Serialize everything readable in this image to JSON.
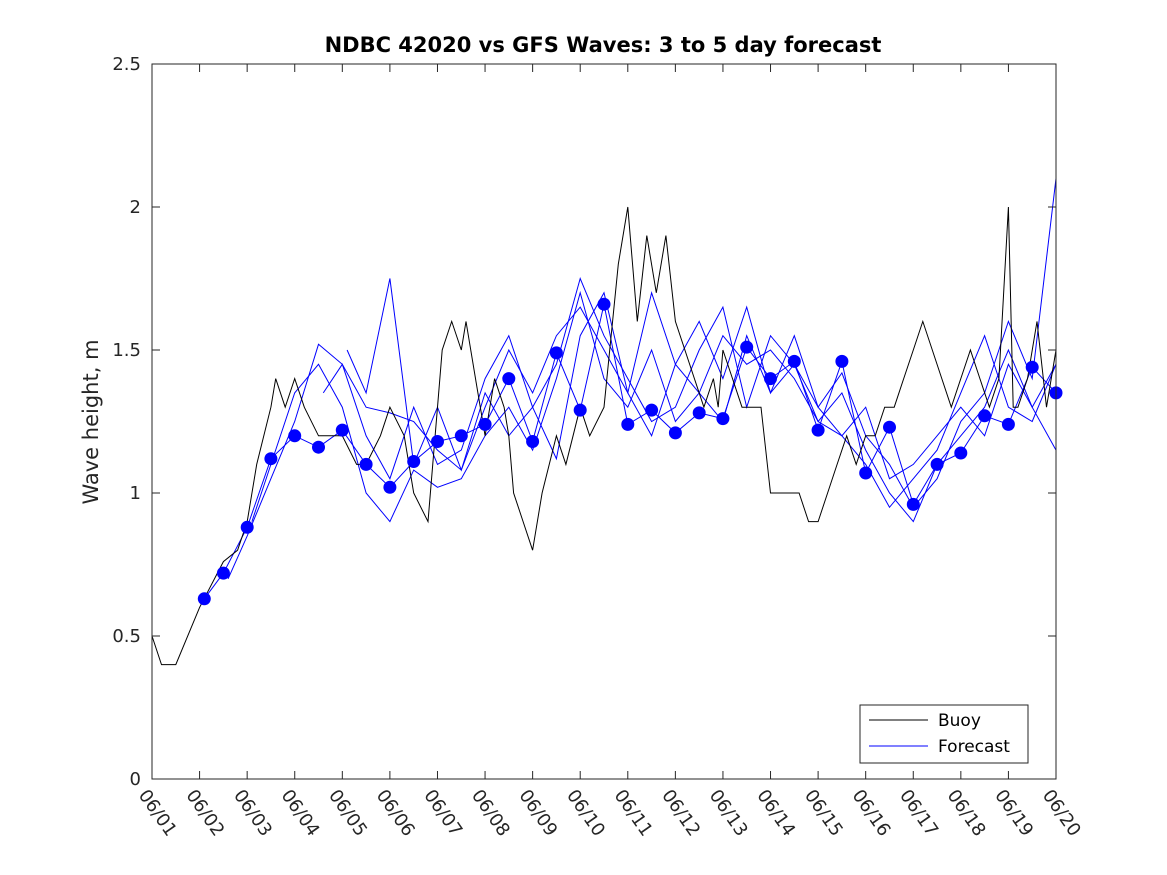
{
  "chart_data": {
    "type": "line",
    "title": "NDBC 42020 vs GFS Waves: 3 to 5 day forecast",
    "xlabel": "",
    "ylabel": "Wave height, m",
    "ylim": [
      0,
      2.5
    ],
    "yticks": [
      0,
      0.5,
      1,
      1.5,
      2,
      2.5
    ],
    "ytick_labels": [
      "0",
      "0.5",
      "1",
      "1.5",
      "2",
      "2.5"
    ],
    "xlim": [
      0,
      19
    ],
    "xtick_labels": [
      "06/01",
      "06/02",
      "06/03",
      "06/04",
      "06/05",
      "06/06",
      "06/07",
      "06/08",
      "06/09",
      "06/10",
      "06/11",
      "06/12",
      "06/13",
      "06/14",
      "06/15",
      "06/16",
      "06/17",
      "06/18",
      "06/19",
      "06/20"
    ],
    "grid": false,
    "legend": {
      "placement": "bottom-right",
      "entries": [
        "Buoy",
        "Forecast"
      ]
    },
    "colors": {
      "buoy": "#000000",
      "forecast": "#0000ff"
    },
    "buoy": {
      "name": "Buoy",
      "x": [
        0.0,
        0.2,
        0.5,
        1.0,
        1.5,
        1.8,
        2.0,
        2.2,
        2.5,
        2.6,
        2.8,
        3.0,
        3.2,
        3.5,
        3.6,
        3.8,
        4.0,
        4.3,
        4.5,
        4.8,
        5.0,
        5.3,
        5.5,
        5.8,
        6.0,
        6.1,
        6.3,
        6.5,
        6.6,
        6.8,
        6.9,
        7.0,
        7.2,
        7.4,
        7.5,
        7.6,
        7.8,
        8.0,
        8.2,
        8.5,
        8.7,
        9.0,
        9.2,
        9.5,
        9.8,
        10.0,
        10.2,
        10.4,
        10.6,
        10.8,
        11.0,
        11.2,
        11.4,
        11.6,
        11.8,
        11.9,
        12.0,
        12.2,
        12.4,
        12.6,
        12.8,
        13.0,
        13.2,
        13.4,
        13.6,
        13.8,
        14.0,
        14.2,
        14.4,
        14.6,
        14.8,
        15.0,
        15.2,
        15.4,
        15.6,
        15.8,
        16.0,
        16.2,
        16.4,
        16.6,
        16.8,
        17.0,
        17.2,
        17.4,
        17.6,
        17.8,
        18.0,
        18.1,
        18.2,
        18.4,
        18.6,
        18.8,
        19.0
      ],
      "values": [
        0.5,
        0.4,
        0.4,
        0.6,
        0.76,
        0.8,
        0.9,
        1.1,
        1.3,
        1.4,
        1.3,
        1.4,
        1.3,
        1.2,
        1.2,
        1.2,
        1.2,
        1.1,
        1.1,
        1.2,
        1.3,
        1.2,
        1.0,
        0.9,
        1.3,
        1.5,
        1.6,
        1.5,
        1.6,
        1.4,
        1.3,
        1.2,
        1.4,
        1.3,
        1.2,
        1.0,
        0.9,
        0.8,
        1.0,
        1.2,
        1.1,
        1.3,
        1.2,
        1.3,
        1.8,
        2.0,
        1.6,
        1.9,
        1.7,
        1.9,
        1.6,
        1.5,
        1.4,
        1.3,
        1.4,
        1.3,
        1.5,
        1.4,
        1.3,
        1.3,
        1.3,
        1.0,
        1.0,
        1.0,
        1.0,
        0.9,
        0.9,
        1.0,
        1.1,
        1.2,
        1.1,
        1.2,
        1.2,
        1.3,
        1.3,
        1.4,
        1.5,
        1.6,
        1.5,
        1.4,
        1.3,
        1.4,
        1.5,
        1.4,
        1.3,
        1.4,
        2.0,
        1.3,
        1.3,
        1.4,
        1.6,
        1.3,
        1.5
      ]
    },
    "forecast_lines": [
      {
        "name": "Forecast",
        "x": [
          1.1,
          1.5,
          2.0,
          2.5,
          3.0,
          3.5,
          4.0,
          4.5,
          5.0,
          5.5,
          6.0,
          6.5,
          7.0,
          7.5,
          8.0,
          8.5,
          9.0,
          9.5,
          10.0,
          10.5,
          11.0,
          11.5,
          12.0,
          12.5,
          13.0,
          13.5,
          14.0,
          14.5,
          15.0,
          15.5,
          16.0,
          16.5,
          17.0,
          17.5,
          18.0,
          18.5,
          19.0
        ],
        "values": [
          0.63,
          0.72,
          0.88,
          1.12,
          1.2,
          1.16,
          1.22,
          1.1,
          1.02,
          1.11,
          1.18,
          1.2,
          1.24,
          1.4,
          1.18,
          1.49,
          1.29,
          1.66,
          1.24,
          1.29,
          1.21,
          1.28,
          1.26,
          1.51,
          1.4,
          1.46,
          1.22,
          1.46,
          1.07,
          1.23,
          0.96,
          1.1,
          1.14,
          1.27,
          1.24,
          1.44,
          1.35
        ]
      },
      {
        "name": "Forecast",
        "x": [
          1.6,
          2.0,
          2.5,
          3.0,
          3.5,
          4.0,
          4.5,
          5.0,
          5.5,
          6.0,
          6.5,
          7.0,
          7.5,
          8.0,
          8.5,
          9.0,
          9.5,
          10.0,
          10.5,
          11.0,
          11.5,
          12.0,
          12.5,
          13.0,
          13.5,
          14.0,
          14.5,
          15.0,
          15.5,
          16.0,
          16.5,
          17.0,
          17.5,
          18.0,
          18.5,
          19.0
        ],
        "values": [
          0.7,
          0.85,
          1.05,
          1.25,
          1.52,
          1.45,
          1.3,
          1.28,
          1.25,
          1.15,
          1.08,
          1.3,
          1.5,
          1.35,
          1.55,
          1.65,
          1.5,
          1.35,
          1.7,
          1.45,
          1.6,
          1.4,
          1.65,
          1.35,
          1.55,
          1.3,
          1.42,
          1.2,
          1.1,
          0.95,
          1.05,
          1.25,
          1.35,
          1.6,
          1.4,
          2.1
        ]
      },
      {
        "name": "Forecast",
        "x": [
          2.1,
          2.5,
          3.0,
          3.5,
          4.0,
          4.5,
          5.0,
          5.5,
          6.0,
          6.5,
          7.0,
          7.5,
          8.0,
          8.5,
          9.0,
          9.5,
          10.0,
          10.5,
          11.0,
          11.5,
          12.0,
          12.5,
          13.0,
          13.5,
          14.0,
          14.5,
          15.0,
          15.5,
          16.0,
          16.5,
          17.0,
          17.5,
          18.0,
          18.5,
          19.0
        ],
        "values": [
          0.9,
          1.1,
          1.35,
          1.45,
          1.3,
          1.0,
          0.9,
          1.08,
          1.02,
          1.05,
          1.2,
          1.3,
          1.15,
          1.4,
          1.7,
          1.4,
          1.3,
          1.5,
          1.25,
          1.35,
          1.55,
          1.45,
          1.5,
          1.4,
          1.25,
          1.35,
          1.15,
          1.0,
          0.9,
          1.1,
          1.2,
          1.3,
          1.5,
          1.3,
          1.15
        ]
      },
      {
        "name": "Forecast",
        "x": [
          3.6,
          4.0,
          4.5,
          5.0,
          5.5,
          6.0,
          6.5,
          7.0,
          7.5,
          8.0,
          8.5,
          9.0,
          9.5,
          10.0,
          10.5,
          11.0,
          11.5,
          12.0,
          12.5,
          13.0,
          13.5,
          14.0,
          14.5,
          15.0,
          15.5,
          16.0,
          16.5,
          17.0,
          17.5,
          18.0,
          18.5,
          19.0
        ],
        "values": [
          1.35,
          1.45,
          1.2,
          1.05,
          1.3,
          1.1,
          1.15,
          1.4,
          1.55,
          1.3,
          1.45,
          1.75,
          1.55,
          1.4,
          1.25,
          1.3,
          1.5,
          1.65,
          1.3,
          1.55,
          1.45,
          1.3,
          1.2,
          1.1,
          0.95,
          1.05,
          1.15,
          1.35,
          1.55,
          1.3,
          1.25,
          1.45
        ]
      },
      {
        "name": "Forecast",
        "x": [
          4.1,
          4.5,
          5.0,
          5.5,
          6.0,
          6.5,
          7.0,
          7.5,
          8.0,
          8.5,
          9.0,
          9.5,
          10.0,
          10.5,
          11.0,
          11.5,
          12.0,
          12.5,
          13.0,
          13.5,
          14.0,
          14.5,
          15.0,
          15.5,
          16.0,
          16.5,
          17.0,
          17.5,
          18.0,
          18.5,
          19.0
        ],
        "values": [
          1.5,
          1.35,
          1.75,
          1.1,
          1.3,
          1.08,
          1.35,
          1.2,
          1.3,
          1.12,
          1.55,
          1.7,
          1.35,
          1.2,
          1.45,
          1.35,
          1.25,
          1.55,
          1.35,
          1.45,
          1.25,
          1.2,
          1.3,
          1.05,
          1.1,
          1.2,
          1.3,
          1.2,
          1.45,
          1.3,
          1.45
        ]
      }
    ]
  }
}
